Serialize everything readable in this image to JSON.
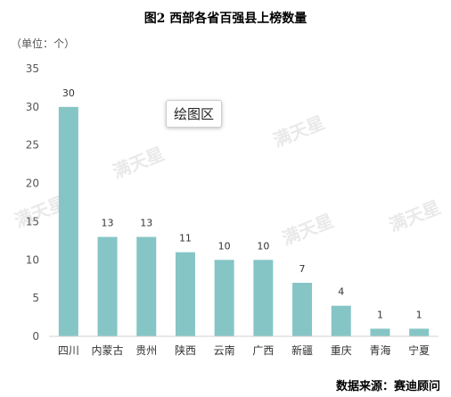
{
  "title": "图2 西部各省百强县上榜数量",
  "unit_label": "（单位：个）",
  "tooltip": "绘图区",
  "source": "数据来源：赛迪顾问",
  "watermark": "满天星",
  "colors": {
    "bar": "#86c5c5",
    "axis": "#d0d0d0",
    "text": "#555555"
  },
  "chart_data": {
    "type": "bar",
    "title": "图2 西部各省百强县上榜数量",
    "ylabel": "（单位：个）",
    "xlabel": "",
    "categories": [
      "四川",
      "内蒙古",
      "贵州",
      "陕西",
      "云南",
      "广西",
      "新疆",
      "重庆",
      "青海",
      "宁夏"
    ],
    "values": [
      30,
      13,
      13,
      11,
      10,
      10,
      7,
      4,
      1,
      1
    ],
    "yticks": [
      0,
      5,
      10,
      15,
      20,
      25,
      30,
      35
    ],
    "ylim": [
      0,
      35
    ],
    "grid": false,
    "legend": "none",
    "data_labels": true
  }
}
